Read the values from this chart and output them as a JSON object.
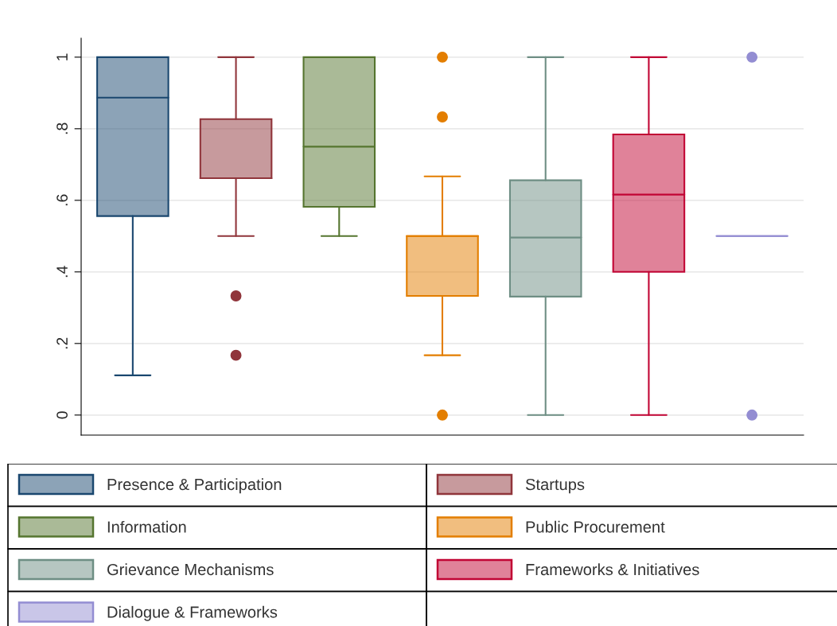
{
  "chart_data": {
    "type": "box",
    "categories": [
      null,
      null,
      null,
      null,
      null,
      null,
      null
    ],
    "ylim": [
      -0.056,
      1.053
    ],
    "yticks": [
      {
        "value": 0,
        "label": "0"
      },
      {
        "value": 0.2,
        "label": ".2"
      },
      {
        "value": 0.4,
        "label": ".4"
      },
      {
        "value": 0.6,
        "label": ".6"
      },
      {
        "value": 0.8,
        "label": ".8"
      },
      {
        "value": 1,
        "label": "1"
      }
    ],
    "grid": "y",
    "legend": "bottom",
    "series": [
      {
        "name": "Presence & Participation",
        "color": "#1a476f",
        "boxes": [
          {
            "low": 0.111,
            "q1": 0.556,
            "median": 0.887,
            "q3": 1,
            "high": 1
          },
          null,
          null,
          null,
          null,
          null,
          null
        ]
      },
      {
        "name": "Startups",
        "color": "#90353b",
        "boxes": [
          null,
          {
            "low": 0.5,
            "q1": 0.662,
            "median": 0.662,
            "q3": 0.827,
            "high": 1,
            "outliers": [
              0.333,
              0.167
            ]
          },
          null,
          null,
          null,
          null,
          null
        ]
      },
      {
        "name": "Information",
        "color": "#55752f",
        "boxes": [
          null,
          null,
          {
            "low": 0.5,
            "q1": 0.582,
            "median": 0.75,
            "q3": 1,
            "high": 1
          },
          null,
          null,
          null,
          null
        ]
      },
      {
        "name": "Public Procurement",
        "color": "#e37e00",
        "boxes": [
          null,
          null,
          null,
          {
            "low": 0.167,
            "q1": 0.333,
            "median": 0.5,
            "q3": 0.5,
            "high": 0.667,
            "outliers": [
              1,
              0.833,
              0
            ]
          },
          null,
          null,
          null
        ]
      },
      {
        "name": "Grievance Mechanisms",
        "color": "#6e8e84",
        "boxes": [
          null,
          null,
          null,
          null,
          {
            "low": 0,
            "q1": 0.331,
            "median": 0.496,
            "q3": 0.656,
            "high": 1
          },
          null,
          null
        ]
      },
      {
        "name": "Frameworks & Initiatives",
        "color": "#c10534",
        "boxes": [
          null,
          null,
          null,
          null,
          null,
          {
            "low": 0,
            "q1": 0.4,
            "median": 0.616,
            "q3": 0.784,
            "high": 1
          },
          null
        ]
      },
      {
        "name": "Dialogue & Frameworks",
        "color": "#938dd2",
        "boxes": [
          null,
          null,
          null,
          null,
          null,
          null,
          {
            "low": 0.5,
            "q1": 0.5,
            "median": 0.5,
            "q3": 0.5,
            "high": 0.5,
            "outliers": [
              1,
              0
            ]
          }
        ]
      }
    ]
  }
}
